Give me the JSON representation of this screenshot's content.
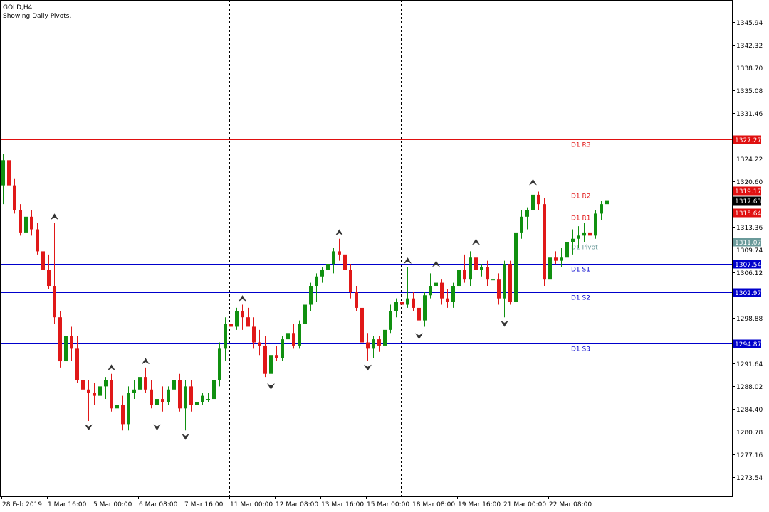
{
  "symbol": "GOLD,H4",
  "subtitle": "Showing Daily Pivots.",
  "chart_data": {
    "type": "candlestick",
    "timeframe": "H4",
    "ylim": [
      1270.5,
      1349.5
    ],
    "y_ticks": [
      "1345.94",
      "1342.32",
      "1338.70",
      "1335.08",
      "1331.46",
      "1324.22",
      "1320.60",
      "1313.36",
      "1309.74",
      "1306.12",
      "1298.88",
      "1291.64",
      "1288.02",
      "1284.40",
      "1280.78",
      "1277.16",
      "1273.54"
    ],
    "x_labels": [
      "28 Feb 2019",
      "1 Mar 16:00",
      "5 Mar 00:00",
      "6 Mar 08:00",
      "7 Mar 16:00",
      "11 Mar 00:00",
      "12 Mar 08:00",
      "13 Mar 16:00",
      "15 Mar 00:00",
      "18 Mar 08:00",
      "19 Mar 16:00",
      "21 Mar 00:00",
      "22 Mar 08:00"
    ],
    "levels": [
      {
        "label": "D1 R3",
        "price_label": "1327.27",
        "value": 1327.27,
        "color": "#e01010"
      },
      {
        "label": "D1 R2",
        "price_label": "1319.17",
        "value": 1319.17,
        "color": "#e01010"
      },
      {
        "label": "D1 R1",
        "price_label": "1315.64",
        "value": 1315.64,
        "color": "#e01010"
      },
      {
        "label": "D1 Pivot",
        "price_label": "1311.07",
        "value": 1311.07,
        "color": "#6a9a9a"
      },
      {
        "label": "D1 S1",
        "price_label": "1307.54",
        "value": 1307.54,
        "color": "#0000cc"
      },
      {
        "label": "D1 S2",
        "price_label": "1302.97",
        "value": 1302.97,
        "color": "#0000cc"
      },
      {
        "label": "D1 S3",
        "price_label": "1294.87",
        "value": 1294.87,
        "color": "#0000cc"
      }
    ],
    "current_price": "1317.63",
    "candles": [
      [
        1320.0,
        1325.0,
        1317.0,
        1324.0
      ],
      [
        1324.0,
        1328.0,
        1319.0,
        1320.0
      ],
      [
        1320.0,
        1321.0,
        1315.5,
        1316.0
      ],
      [
        1316.0,
        1317.0,
        1312.0,
        1312.5
      ],
      [
        1312.5,
        1316.0,
        1311.5,
        1315.0
      ],
      [
        1315.0,
        1316.0,
        1312.0,
        1313.0
      ],
      [
        1313.0,
        1314.0,
        1309.0,
        1309.5
      ],
      [
        1309.5,
        1311.0,
        1306.0,
        1306.5
      ],
      [
        1306.5,
        1309.0,
        1303.5,
        1304.0
      ],
      [
        1304.0,
        1314.0,
        1298.0,
        1299.0
      ],
      [
        1299.0,
        1300.0,
        1291.0,
        1292.0
      ],
      [
        1292.0,
        1298.0,
        1290.5,
        1296.0
      ],
      [
        1296.0,
        1297.5,
        1292.0,
        1294.0
      ],
      [
        1294.0,
        1296.0,
        1288.5,
        1289.0
      ],
      [
        1289.0,
        1290.0,
        1286.5,
        1287.5
      ],
      [
        1287.5,
        1289.0,
        1282.5,
        1287.0
      ],
      [
        1287.0,
        1288.5,
        1285.0,
        1286.5
      ],
      [
        1286.5,
        1289.0,
        1285.5,
        1288.0
      ],
      [
        1288.0,
        1289.5,
        1286.0,
        1289.0
      ],
      [
        1289.0,
        1290.0,
        1284.0,
        1284.5
      ],
      [
        1284.5,
        1286.0,
        1281.5,
        1285.0
      ],
      [
        1285.0,
        1286.5,
        1281.0,
        1282.0
      ],
      [
        1282.0,
        1288.0,
        1281.0,
        1287.0
      ],
      [
        1287.0,
        1289.0,
        1286.0,
        1287.5
      ],
      [
        1287.5,
        1290.0,
        1286.0,
        1289.5
      ],
      [
        1289.5,
        1291.0,
        1287.0,
        1287.5
      ],
      [
        1287.5,
        1289.0,
        1284.5,
        1285.0
      ],
      [
        1285.0,
        1287.0,
        1282.5,
        1286.0
      ],
      [
        1286.0,
        1288.0,
        1284.0,
        1285.5
      ],
      [
        1285.5,
        1288.0,
        1285.0,
        1287.5
      ],
      [
        1287.5,
        1290.0,
        1286.0,
        1289.0
      ],
      [
        1289.0,
        1290.0,
        1284.0,
        1284.5
      ],
      [
        1284.5,
        1289.0,
        1281.0,
        1288.0
      ],
      [
        1288.0,
        1289.0,
        1284.0,
        1285.0
      ],
      [
        1285.0,
        1286.0,
        1284.5,
        1285.5
      ],
      [
        1285.5,
        1287.0,
        1285.0,
        1286.5
      ],
      [
        1286.0,
        1287.0,
        1285.5,
        1286.0
      ],
      [
        1286.0,
        1289.5,
        1285.5,
        1289.0
      ],
      [
        1289.0,
        1295.0,
        1288.0,
        1294.0
      ],
      [
        1294.0,
        1299.0,
        1292.0,
        1298.0
      ],
      [
        1298.0,
        1300.0,
        1295.0,
        1297.5
      ],
      [
        1297.5,
        1300.5,
        1297.0,
        1300.0
      ],
      [
        1300.0,
        1301.0,
        1297.0,
        1299.0
      ],
      [
        1299.0,
        1300.5,
        1298.0,
        1297.5
      ],
      [
        1297.5,
        1299.0,
        1294.0,
        1295.0
      ],
      [
        1295.0,
        1297.0,
        1293.0,
        1294.5
      ],
      [
        1294.5,
        1296.0,
        1289.5,
        1290.0
      ],
      [
        1290.0,
        1293.5,
        1289.0,
        1293.0
      ],
      [
        1293.0,
        1294.5,
        1292.0,
        1292.5
      ],
      [
        1292.5,
        1296.0,
        1292.0,
        1295.5
      ],
      [
        1295.5,
        1297.0,
        1294.0,
        1296.5
      ],
      [
        1296.5,
        1298.0,
        1294.0,
        1294.5
      ],
      [
        1294.5,
        1298.5,
        1294.0,
        1298.0
      ],
      [
        1298.0,
        1302.0,
        1297.0,
        1301.0
      ],
      [
        1301.0,
        1304.5,
        1300.0,
        1304.0
      ],
      [
        1304.0,
        1306.0,
        1301.5,
        1305.5
      ],
      [
        1305.5,
        1307.0,
        1304.5,
        1306.5
      ],
      [
        1306.5,
        1308.0,
        1305.5,
        1307.5
      ],
      [
        1307.5,
        1310.0,
        1306.0,
        1309.5
      ],
      [
        1309.5,
        1311.5,
        1308.0,
        1309.0
      ],
      [
        1309.0,
        1310.0,
        1306.0,
        1306.5
      ],
      [
        1306.5,
        1307.5,
        1302.0,
        1303.0
      ],
      [
        1303.0,
        1304.0,
        1300.0,
        1300.5
      ],
      [
        1300.5,
        1301.0,
        1294.5,
        1295.0
      ],
      [
        1295.0,
        1296.5,
        1292.0,
        1294.0
      ],
      [
        1294.0,
        1296.0,
        1292.5,
        1295.5
      ],
      [
        1295.5,
        1296.0,
        1293.5,
        1294.5
      ],
      [
        1294.5,
        1297.5,
        1292.5,
        1297.0
      ],
      [
        1297.0,
        1301.0,
        1296.5,
        1300.0
      ],
      [
        1300.0,
        1302.0,
        1299.0,
        1301.5
      ],
      [
        1301.5,
        1303.0,
        1300.0,
        1301.0
      ],
      [
        1301.0,
        1307.0,
        1300.5,
        1302.0
      ],
      [
        1302.0,
        1303.0,
        1300.0,
        1300.5
      ],
      [
        1300.5,
        1301.0,
        1297.0,
        1298.5
      ],
      [
        1298.5,
        1303.0,
        1297.5,
        1302.5
      ],
      [
        1302.5,
        1306.0,
        1302.0,
        1304.0
      ],
      [
        1304.0,
        1306.5,
        1302.5,
        1304.5
      ],
      [
        1304.5,
        1305.0,
        1301.0,
        1302.0
      ],
      [
        1302.0,
        1303.5,
        1300.5,
        1301.5
      ],
      [
        1301.5,
        1304.5,
        1300.5,
        1304.0
      ],
      [
        1304.0,
        1307.5,
        1303.0,
        1306.5
      ],
      [
        1306.5,
        1309.0,
        1304.5,
        1305.0
      ],
      [
        1305.0,
        1309.5,
        1304.0,
        1308.5
      ],
      [
        1308.5,
        1310.0,
        1306.0,
        1306.5
      ],
      [
        1306.5,
        1307.5,
        1305.5,
        1307.0
      ],
      [
        1307.0,
        1308.0,
        1304.0,
        1305.0
      ],
      [
        1305.0,
        1306.0,
        1304.5,
        1305.0
      ],
      [
        1305.0,
        1306.0,
        1301.0,
        1302.0
      ],
      [
        1302.0,
        1308.0,
        1299.0,
        1307.5
      ],
      [
        1307.5,
        1308.0,
        1301.0,
        1301.5
      ],
      [
        1301.5,
        1313.0,
        1301.0,
        1312.5
      ],
      [
        1312.5,
        1316.0,
        1311.5,
        1315.0
      ],
      [
        1315.0,
        1316.5,
        1313.0,
        1316.0
      ],
      [
        1316.0,
        1319.5,
        1315.0,
        1318.5
      ],
      [
        1318.5,
        1319.0,
        1316.0,
        1317.0
      ],
      [
        1317.0,
        1318.0,
        1304.0,
        1305.0
      ],
      [
        1305.0,
        1309.0,
        1304.0,
        1308.5
      ],
      [
        1308.5,
        1309.5,
        1307.5,
        1308.0
      ],
      [
        1308.0,
        1310.0,
        1307.0,
        1308.5
      ],
      [
        1308.5,
        1312.0,
        1308.0,
        1311.0
      ],
      [
        1311.0,
        1313.0,
        1309.0,
        1311.5
      ],
      [
        1311.5,
        1313.5,
        1310.0,
        1312.0
      ],
      [
        1312.0,
        1314.0,
        1311.0,
        1312.5
      ],
      [
        1312.5,
        1313.0,
        1311.5,
        1312.0
      ],
      [
        1312.0,
        1316.0,
        1311.5,
        1315.5
      ],
      [
        1315.5,
        1317.5,
        1314.5,
        1317.0
      ],
      [
        1317.0,
        1318.0,
        1316.0,
        1317.63
      ]
    ]
  }
}
